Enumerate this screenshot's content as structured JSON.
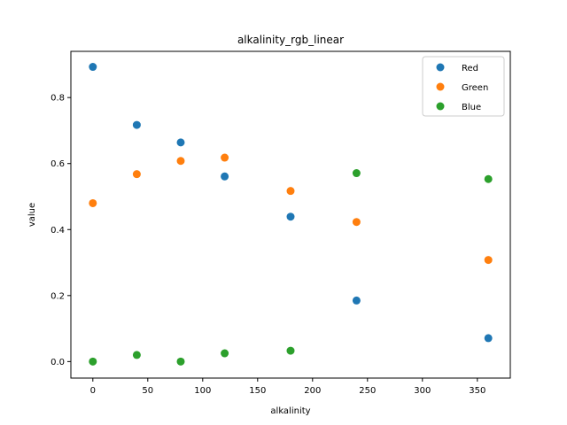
{
  "chart_data": {
    "type": "scatter",
    "title": "alkalinity_rgb_linear",
    "xlabel": "alkalinity",
    "ylabel": "value",
    "xlim": [
      -20,
      380
    ],
    "ylim": [
      -0.05,
      0.94
    ],
    "xticks": [
      0,
      50,
      100,
      150,
      200,
      250,
      300,
      350
    ],
    "yticks": [
      0.0,
      0.2,
      0.4,
      0.6,
      0.8
    ],
    "grid": false,
    "legend_position": "top-right",
    "x": [
      0,
      40,
      80,
      120,
      180,
      240,
      360
    ],
    "series": [
      {
        "name": "Red",
        "color": "#1f77b4",
        "values": [
          0.893,
          0.717,
          0.664,
          0.561,
          0.439,
          0.185,
          0.071
        ]
      },
      {
        "name": "Green",
        "color": "#ff7f0e",
        "values": [
          0.48,
          0.568,
          0.608,
          0.618,
          0.517,
          0.423,
          0.308
        ]
      },
      {
        "name": "Blue",
        "color": "#2ca02c",
        "values": [
          0.0,
          0.02,
          0.0,
          0.025,
          0.033,
          0.571,
          0.553
        ]
      }
    ]
  }
}
